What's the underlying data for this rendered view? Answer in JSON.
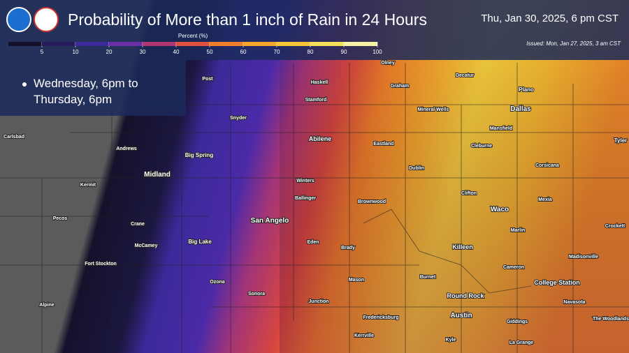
{
  "header": {
    "title": "Probability of More than 1 inch of Rain in 24 Hours",
    "valid_time": "Thu, Jan 30, 2025, 6 pm CST",
    "issued": "Issued: Mon, Jan 27, 2025, 3 am CST"
  },
  "legend": {
    "title": "Percent (%)",
    "ticks": [
      5,
      10,
      20,
      30,
      40,
      50,
      60,
      70,
      80,
      90,
      100
    ],
    "colors": [
      "#14122b",
      "#251c5c",
      "#3b2a9a",
      "#6a2fa6",
      "#b2366f",
      "#e0503f",
      "#ef7f2a",
      "#f5a52c",
      "#f6c63a",
      "#f4e05a",
      "#f8f2a6"
    ]
  },
  "period": "Wednesday, 6pm to Thursday, 6pm",
  "cities": [
    "Post",
    "Olney",
    "Haskell",
    "Graham",
    "Decatur",
    "Plano",
    "Stamford",
    "Snyder",
    "Mineral Wells",
    "Dallas",
    "Carlsbad",
    "Abilene",
    "Eastland",
    "Mansfield",
    "Andrews",
    "Big Spring",
    "Cleburne",
    "Tyler",
    "Midland",
    "Dublin",
    "Corsicana",
    "Kermit",
    "Winters",
    "Ballinger",
    "Clifton",
    "Brownwood",
    "Waco",
    "Mexia",
    "Pecos",
    "Crane",
    "San Angelo",
    "Marlin",
    "Crockett",
    "McCamey",
    "Big Lake",
    "Eden",
    "Brady",
    "Killeen",
    "Madisonville",
    "Fort Stockton",
    "Ozona",
    "Mason",
    "Burnet",
    "Cameron",
    "College Station",
    "Sonora",
    "Round Rock",
    "Navasota",
    "Junction",
    "Alpine",
    "Fredericksburg",
    "Austin",
    "Giddings",
    "The Woodlands",
    "Kerrville",
    "Kyle",
    "La Grange"
  ]
}
